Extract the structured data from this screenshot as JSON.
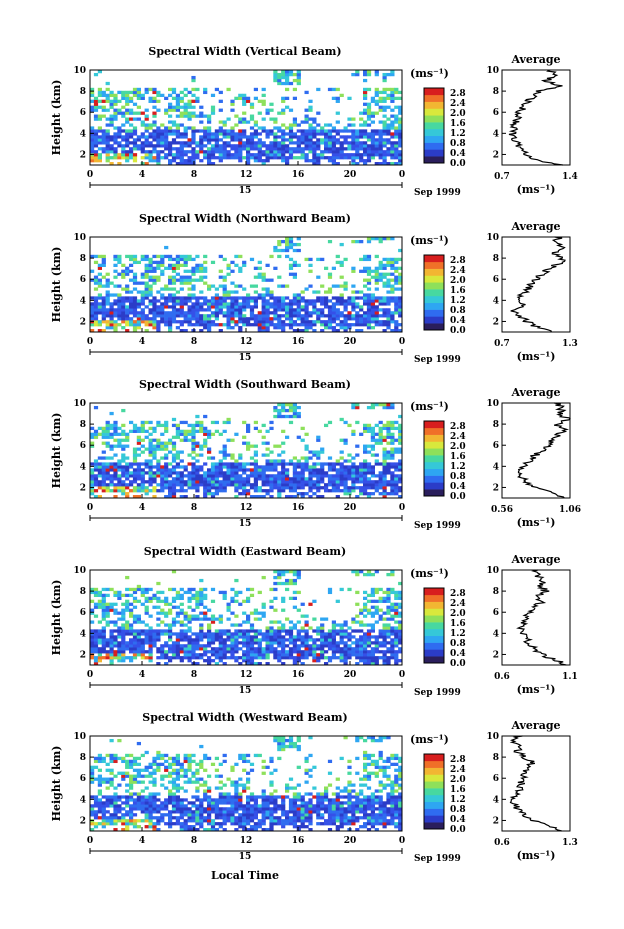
{
  "figure": {
    "x_axis_label": "Local Time",
    "colorbar_unit": "(ms⁻¹)",
    "avg_title": "Average",
    "avg_unit": "(ms⁻¹)",
    "date_day": "15",
    "date_month": "Sep 1999",
    "colorbar_ticks": [
      "2.8",
      "2.4",
      "2.0",
      "1.6",
      "1.2",
      "0.8",
      "0.4",
      "0.0"
    ],
    "colorbar_colors": [
      "#2a1e5c",
      "#2b3cc8",
      "#2f6cf0",
      "#2ea6f2",
      "#35c8d8",
      "#47d8a0",
      "#8ee05a",
      "#d8e83c",
      "#f2b632",
      "#f07028",
      "#d81e1e"
    ],
    "heat_colors": [
      "#2b3cc8",
      "#3550e8",
      "#2f6cf0",
      "#2ea6f2",
      "#35c8d8",
      "#47d8a0",
      "#8ee05a",
      "#d8e83c",
      "#f2b632",
      "#f07028",
      "#d81e1e"
    ]
  },
  "chart_data": [
    {
      "type": "heatmap",
      "title": "Spectral Width (Vertical Beam)",
      "ylabel": "Height (km)",
      "xlabel": "Local Time",
      "x_ticks": [
        "0",
        "4",
        "8",
        "12",
        "16",
        "20",
        "0"
      ],
      "y_ticks": [
        "10",
        "8",
        "6",
        "4",
        "2"
      ],
      "xlim": [
        0,
        24
      ],
      "ylim": [
        1,
        10
      ],
      "colorbar_range": [
        0.0,
        2.8
      ],
      "average": {
        "type": "line",
        "title": "Average",
        "xlim": [
          0.7,
          1.4
        ],
        "x_ticks": [
          "0.7",
          "1.4"
        ],
        "y_ticks": [
          "10",
          "8",
          "6",
          "4",
          "2"
        ],
        "profile": [
          [
            1.0,
            1.32
          ],
          [
            1.5,
            1.05
          ],
          [
            2.0,
            0.96
          ],
          [
            2.5,
            0.9
          ],
          [
            3.0,
            0.86
          ],
          [
            3.5,
            0.82
          ],
          [
            4.0,
            0.8
          ],
          [
            4.5,
            0.82
          ],
          [
            5.0,
            0.84
          ],
          [
            5.5,
            0.86
          ],
          [
            6.0,
            0.88
          ],
          [
            6.5,
            0.92
          ],
          [
            7.0,
            0.96
          ],
          [
            7.5,
            1.02
          ],
          [
            8.0,
            1.08
          ],
          [
            8.5,
            1.3
          ],
          [
            9.0,
            1.15
          ],
          [
            9.5,
            1.25
          ],
          [
            10.0,
            1.2
          ]
        ]
      }
    },
    {
      "type": "heatmap",
      "title": "Spectral Width (Northward Beam)",
      "ylabel": "Height (km)",
      "xlabel": "Local Time",
      "x_ticks": [
        "0",
        "4",
        "8",
        "12",
        "16",
        "20",
        "0"
      ],
      "y_ticks": [
        "10",
        "8",
        "6",
        "4",
        "2"
      ],
      "xlim": [
        0,
        24
      ],
      "ylim": [
        1,
        10
      ],
      "colorbar_range": [
        0.0,
        2.8
      ],
      "average": {
        "type": "line",
        "title": "Average",
        "xlim": [
          0.7,
          1.3
        ],
        "x_ticks": [
          "0.7",
          "1.3"
        ],
        "y_ticks": [
          "10",
          "8",
          "6",
          "4",
          "2"
        ],
        "profile": [
          [
            1.0,
            1.15
          ],
          [
            1.5,
            1.0
          ],
          [
            2.0,
            0.92
          ],
          [
            2.5,
            0.86
          ],
          [
            3.0,
            0.8
          ],
          [
            3.5,
            0.9
          ],
          [
            4.0,
            0.84
          ],
          [
            4.5,
            0.88
          ],
          [
            5.0,
            0.92
          ],
          [
            5.5,
            0.96
          ],
          [
            6.0,
            1.0
          ],
          [
            6.5,
            1.05
          ],
          [
            7.0,
            1.12
          ],
          [
            7.5,
            1.2
          ],
          [
            8.0,
            1.25
          ],
          [
            8.5,
            1.15
          ],
          [
            9.0,
            1.22
          ],
          [
            9.5,
            1.18
          ],
          [
            10.0,
            1.2
          ]
        ]
      }
    },
    {
      "type": "heatmap",
      "title": "Spectral Width (Southward Beam)",
      "ylabel": "Height (km)",
      "xlabel": "Local Time",
      "x_ticks": [
        "0",
        "4",
        "8",
        "12",
        "16",
        "20",
        "0"
      ],
      "y_ticks": [
        "10",
        "8",
        "6",
        "4",
        "2"
      ],
      "xlim": [
        0,
        24
      ],
      "ylim": [
        1,
        10
      ],
      "colorbar_range": [
        0.0,
        2.8
      ],
      "average": {
        "type": "line",
        "title": "Average",
        "xlim": [
          0.56,
          1.06
        ],
        "x_ticks": [
          "0.56",
          "1.06"
        ],
        "y_ticks": [
          "10",
          "8",
          "6",
          "4",
          "2"
        ],
        "profile": [
          [
            1.0,
            1.0
          ],
          [
            1.5,
            0.95
          ],
          [
            2.0,
            0.82
          ],
          [
            2.5,
            0.74
          ],
          [
            3.0,
            0.7
          ],
          [
            3.5,
            0.68
          ],
          [
            4.0,
            0.72
          ],
          [
            4.5,
            0.76
          ],
          [
            5.0,
            0.8
          ],
          [
            5.5,
            0.86
          ],
          [
            6.0,
            0.9
          ],
          [
            6.5,
            0.94
          ],
          [
            7.0,
            0.98
          ],
          [
            7.5,
            1.02
          ],
          [
            8.0,
            0.96
          ],
          [
            8.5,
            1.04
          ],
          [
            9.0,
            0.98
          ],
          [
            9.5,
            1.0
          ],
          [
            10.0,
            0.96
          ]
        ]
      }
    },
    {
      "type": "heatmap",
      "title": "Spectral Width (Eastward Beam)",
      "ylabel": "Height (km)",
      "xlabel": "Local Time",
      "x_ticks": [
        "0",
        "4",
        "8",
        "12",
        "16",
        "20",
        "0"
      ],
      "y_ticks": [
        "10",
        "8",
        "6",
        "4",
        "2"
      ],
      "xlim": [
        0,
        24
      ],
      "ylim": [
        1,
        10
      ],
      "colorbar_range": [
        0.0,
        2.8
      ],
      "average": {
        "type": "line",
        "title": "Average",
        "xlim": [
          0.6,
          1.1
        ],
        "x_ticks": [
          "0.6",
          "1.1"
        ],
        "y_ticks": [
          "10",
          "8",
          "6",
          "4",
          "2"
        ],
        "profile": [
          [
            1.0,
            1.08
          ],
          [
            1.5,
            0.98
          ],
          [
            2.0,
            0.9
          ],
          [
            2.5,
            0.84
          ],
          [
            3.0,
            0.8
          ],
          [
            3.5,
            0.78
          ],
          [
            4.0,
            0.76
          ],
          [
            4.5,
            0.74
          ],
          [
            5.0,
            0.76
          ],
          [
            5.5,
            0.78
          ],
          [
            6.0,
            0.8
          ],
          [
            6.5,
            0.84
          ],
          [
            7.0,
            0.9
          ],
          [
            7.5,
            0.86
          ],
          [
            8.0,
            0.92
          ],
          [
            8.5,
            0.88
          ],
          [
            9.0,
            0.9
          ],
          [
            9.5,
            0.86
          ],
          [
            10.0,
            0.84
          ]
        ]
      }
    },
    {
      "type": "heatmap",
      "title": "Spectral Width (Westward Beam)",
      "ylabel": "Height (km)",
      "xlabel": "Local Time",
      "x_ticks": [
        "0",
        "4",
        "8",
        "12",
        "16",
        "20",
        "0"
      ],
      "y_ticks": [
        "10",
        "8",
        "6",
        "4",
        "2"
      ],
      "xlim": [
        0,
        24
      ],
      "ylim": [
        1,
        10
      ],
      "colorbar_range": [
        0.0,
        2.8
      ],
      "average": {
        "type": "line",
        "title": "Average",
        "xlim": [
          0.6,
          1.3
        ],
        "x_ticks": [
          "0.6",
          "1.3"
        ],
        "y_ticks": [
          "10",
          "8",
          "6",
          "4",
          "2"
        ],
        "profile": [
          [
            1.0,
            1.22
          ],
          [
            1.5,
            1.05
          ],
          [
            2.0,
            0.92
          ],
          [
            2.5,
            0.84
          ],
          [
            3.0,
            0.78
          ],
          [
            3.5,
            0.72
          ],
          [
            4.0,
            0.7
          ],
          [
            4.5,
            0.74
          ],
          [
            5.0,
            0.78
          ],
          [
            5.5,
            0.8
          ],
          [
            6.0,
            0.82
          ],
          [
            6.5,
            0.84
          ],
          [
            7.0,
            0.86
          ],
          [
            7.5,
            0.92
          ],
          [
            8.0,
            0.82
          ],
          [
            8.5,
            0.76
          ],
          [
            9.0,
            0.8
          ],
          [
            9.5,
            0.72
          ],
          [
            10.0,
            0.78
          ]
        ]
      }
    }
  ]
}
